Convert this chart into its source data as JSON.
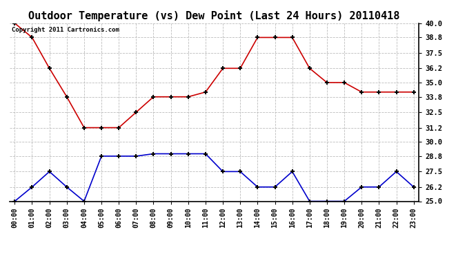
{
  "title": "Outdoor Temperature (vs) Dew Point (Last 24 Hours) 20110418",
  "copyright_text": "Copyright 2011 Cartronics.com",
  "x_labels": [
    "00:00",
    "01:00",
    "02:00",
    "03:00",
    "04:00",
    "05:00",
    "06:00",
    "07:00",
    "08:00",
    "09:00",
    "10:00",
    "11:00",
    "12:00",
    "13:00",
    "14:00",
    "15:00",
    "16:00",
    "17:00",
    "18:00",
    "19:00",
    "20:00",
    "21:00",
    "22:00",
    "23:00"
  ],
  "temp_data": [
    40.0,
    38.8,
    36.2,
    33.8,
    31.2,
    31.2,
    31.2,
    32.5,
    33.8,
    33.8,
    33.8,
    34.2,
    36.2,
    36.2,
    38.8,
    38.8,
    38.8,
    36.2,
    35.0,
    35.0,
    34.2,
    34.2,
    34.2,
    34.2
  ],
  "dew_data": [
    25.0,
    26.2,
    27.5,
    26.2,
    25.0,
    28.8,
    28.8,
    28.8,
    29.0,
    29.0,
    29.0,
    29.0,
    27.5,
    27.5,
    26.2,
    26.2,
    27.5,
    25.0,
    25.0,
    25.0,
    26.2,
    26.2,
    27.5,
    26.2
  ],
  "temp_color": "#cc0000",
  "dew_color": "#0000cc",
  "ylim_min": 25.0,
  "ylim_max": 40.0,
  "yticks": [
    25.0,
    26.2,
    27.5,
    28.8,
    30.0,
    31.2,
    32.5,
    33.8,
    35.0,
    36.2,
    37.5,
    38.8,
    40.0
  ],
  "background_color": "#ffffff",
  "plot_bg_color": "#ffffff",
  "grid_color": "#bbbbbb",
  "title_fontsize": 11,
  "marker": "+",
  "marker_size": 5,
  "marker_edge_width": 1.5,
  "line_width": 1.2
}
